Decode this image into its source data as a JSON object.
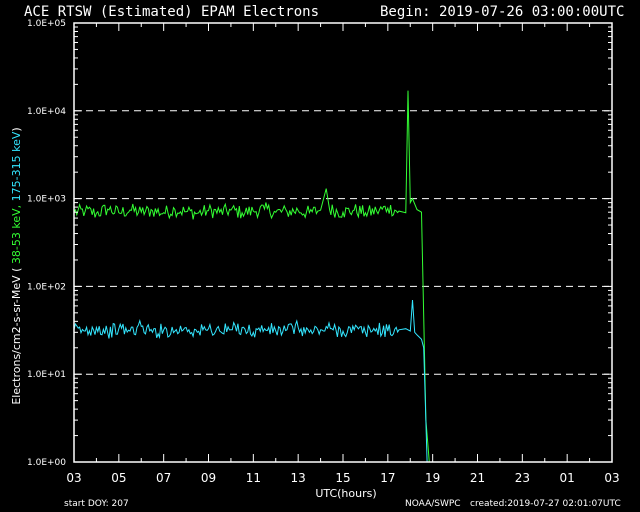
{
  "header": {
    "title": "ACE RTSW (Estimated) EPAM Electrons",
    "begin": "Begin: 2019-07-26 03:00:00UTC"
  },
  "footer": {
    "start_doy": "start DOY:  207",
    "agency": "NOAA/SWPC",
    "created": "created:2019-07-27 02:01:07UTC"
  },
  "chart_data": {
    "type": "line",
    "title": "ACE RTSW (Estimated) EPAM Electrons",
    "xlabel": "UTC(hours)",
    "ylabel_parts": {
      "prefix": "Electrons/cm2-s-sr-MeV  ( ",
      "low": "38-53 keV,",
      "high": " 175-315 keV",
      "suffix": ")"
    },
    "x_ticks": [
      "03",
      "05",
      "07",
      "09",
      "11",
      "13",
      "15",
      "17",
      "19",
      "21",
      "23",
      "01",
      "03"
    ],
    "x_range_hours": [
      0,
      24
    ],
    "y_scale": "log",
    "y_ticks": [
      "1.0E+00",
      "1.0E+01",
      "1.0E+02",
      "1.0E+03",
      "1.0E+04",
      "1.0E+05"
    ],
    "ylim": [
      1,
      100000
    ],
    "grid": "dashed horizontal at decades",
    "colors": {
      "background": "#000000",
      "axes": "#ffffff",
      "grid": "#ffffff"
    },
    "series": [
      {
        "name": "38-53 keV",
        "color": "#33ff33",
        "points": [
          [
            0.0,
            700
          ],
          [
            0.5,
            720
          ],
          [
            1.0,
            680
          ],
          [
            1.5,
            760
          ],
          [
            2.0,
            690
          ],
          [
            2.5,
            740
          ],
          [
            3.0,
            700
          ],
          [
            3.5,
            730
          ],
          [
            4.0,
            690
          ],
          [
            4.5,
            750
          ],
          [
            5.0,
            710
          ],
          [
            5.5,
            680
          ],
          [
            6.0,
            730
          ],
          [
            6.5,
            700
          ],
          [
            7.0,
            740
          ],
          [
            7.5,
            690
          ],
          [
            8.0,
            720
          ],
          [
            8.5,
            760
          ],
          [
            9.0,
            700
          ],
          [
            9.5,
            710
          ],
          [
            10.0,
            730
          ],
          [
            10.5,
            690
          ],
          [
            11.0,
            740
          ],
          [
            11.25,
            1300
          ],
          [
            11.4,
            750
          ],
          [
            12.0,
            700
          ],
          [
            12.5,
            740
          ],
          [
            13.0,
            690
          ],
          [
            13.5,
            720
          ],
          [
            14.0,
            780
          ],
          [
            14.5,
            720
          ],
          [
            14.8,
            690
          ],
          [
            14.9,
            17000
          ],
          [
            15.0,
            900
          ],
          [
            15.1,
            1000
          ],
          [
            15.3,
            750
          ],
          [
            15.5,
            700
          ],
          [
            15.7,
            3
          ],
          [
            15.85,
            0.5
          ]
        ]
      },
      {
        "name": "175-315 keV",
        "color": "#33e6ff",
        "points": [
          [
            0.0,
            32
          ],
          [
            0.5,
            31
          ],
          [
            1.0,
            34
          ],
          [
            1.5,
            30
          ],
          [
            2.0,
            33
          ],
          [
            2.5,
            31
          ],
          [
            3.0,
            35
          ],
          [
            3.5,
            30
          ],
          [
            4.0,
            32
          ],
          [
            4.5,
            31
          ],
          [
            5.0,
            34
          ],
          [
            5.5,
            30
          ],
          [
            6.0,
            33
          ],
          [
            6.5,
            31
          ],
          [
            7.0,
            32
          ],
          [
            7.5,
            34
          ],
          [
            8.0,
            30
          ],
          [
            8.5,
            33
          ],
          [
            9.0,
            31
          ],
          [
            9.5,
            32
          ],
          [
            10.0,
            34
          ],
          [
            10.5,
            30
          ],
          [
            11.0,
            32
          ],
          [
            11.5,
            33
          ],
          [
            12.0,
            31
          ],
          [
            12.5,
            32
          ],
          [
            13.0,
            30
          ],
          [
            13.5,
            33
          ],
          [
            14.0,
            31
          ],
          [
            14.5,
            32
          ],
          [
            14.8,
            33
          ],
          [
            15.0,
            31
          ],
          [
            15.1,
            70
          ],
          [
            15.2,
            30
          ],
          [
            15.3,
            28
          ],
          [
            15.5,
            25
          ],
          [
            15.6,
            20
          ],
          [
            15.75,
            0.5
          ]
        ]
      }
    ]
  }
}
